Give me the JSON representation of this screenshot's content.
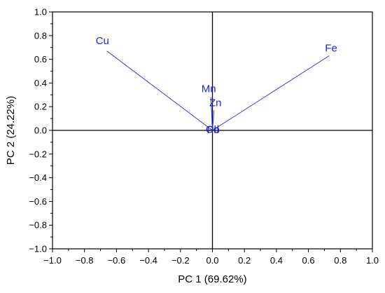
{
  "chart_data": {
    "type": "scatter",
    "subtype": "pca-loading-plot",
    "xlabel": "PC 1 (69.62%)",
    "ylabel": "PC 2 (24.22%)",
    "xlim": [
      -1.0,
      1.0
    ],
    "ylim": [
      -1.0,
      1.0
    ],
    "x_ticks": [
      -1.0,
      -0.8,
      -0.6,
      -0.4,
      -0.2,
      0.0,
      0.2,
      0.4,
      0.6,
      0.8,
      1.0
    ],
    "y_ticks": [
      -1.0,
      -0.8,
      -0.6,
      -0.4,
      -0.2,
      0.0,
      0.2,
      0.4,
      0.6,
      0.8,
      1.0
    ],
    "x_tick_labels": [
      "−1.0",
      "−0.8",
      "−0.6",
      "−0.4",
      "−0.2",
      "0.0",
      "0.2",
      "0.4",
      "0.6",
      "0.8",
      "1.0"
    ],
    "y_tick_labels": [
      "−1.0",
      "−0.8",
      "−0.6",
      "−0.4",
      "−0.2",
      "0.0",
      "0.2",
      "0.4",
      "0.6",
      "0.8",
      "1.0"
    ],
    "zero_lines": true,
    "grid": false,
    "vector_color": "#2b2bd6",
    "label_color": "#1f1fd9",
    "loadings": [
      {
        "name": "Cu",
        "x": -0.66,
        "y": 0.67
      },
      {
        "name": "Fe",
        "x": 0.73,
        "y": 0.63
      },
      {
        "name": "Mn",
        "x": -0.01,
        "y": 0.28
      },
      {
        "name": "Zn",
        "x": 0.01,
        "y": 0.17
      },
      {
        "name": "Cd",
        "x": 0.0,
        "y": 0.01
      },
      {
        "name": "Pb",
        "x": 0.005,
        "y": 0.005
      }
    ]
  }
}
